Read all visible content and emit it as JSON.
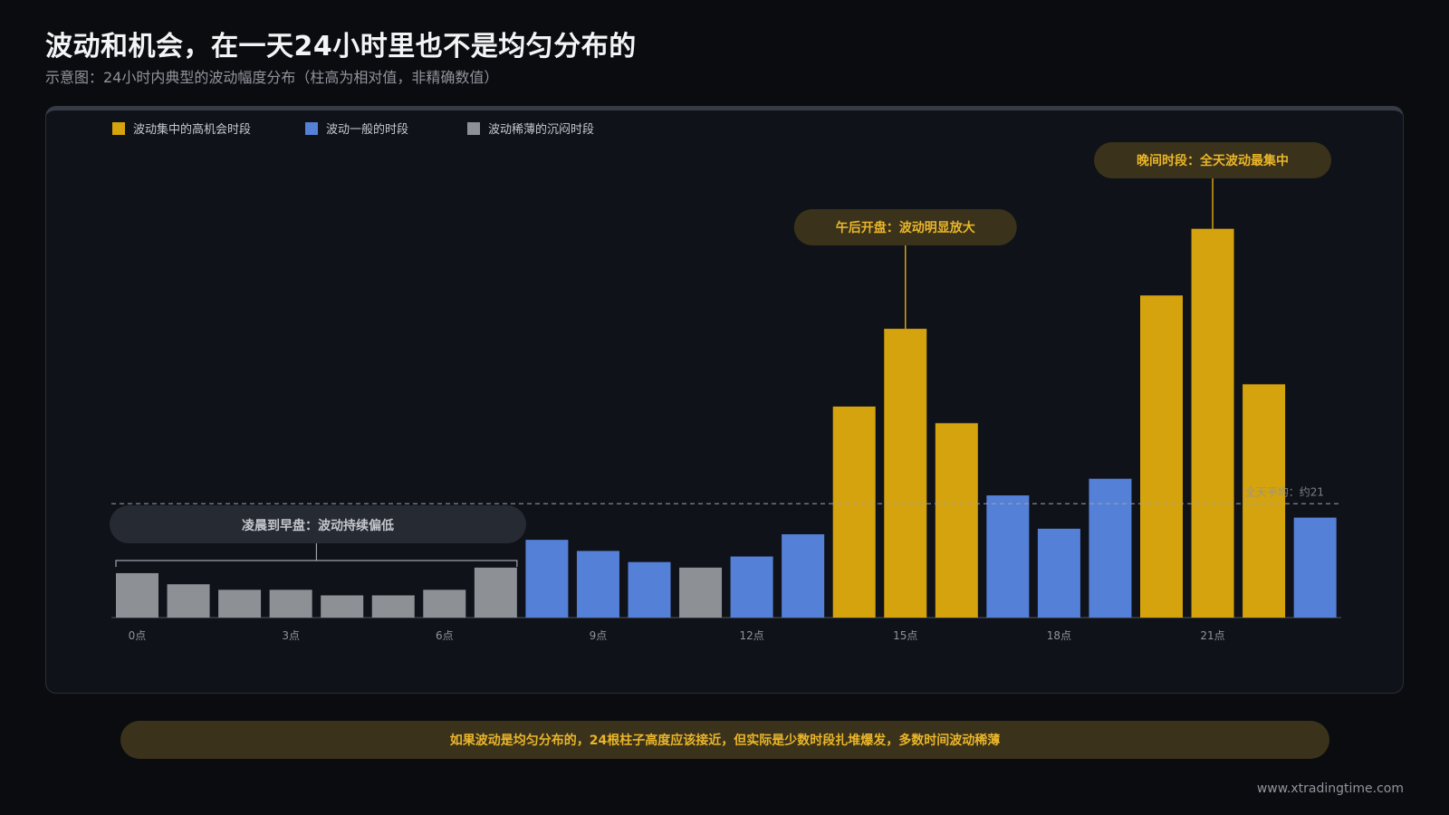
{
  "header": {
    "title": "波动和机会，在一天24小时里也不是均匀分布的",
    "subtitle": "示意图：24小时内典型的波动幅度分布（柱高为相对值，非精确数值）"
  },
  "colors": {
    "high": "#d4a30e",
    "normal": "#5580d8",
    "low": "#8d9094",
    "callout_gold_bg": "#3a321a",
    "callout_gold_text": "#e9b52a",
    "callout_gray_bg": "#262a32",
    "callout_gray_text": "#c4c7cc"
  },
  "chart_data": {
    "type": "bar",
    "legend": [
      {
        "key": "high",
        "label": "波动集中的高机会时段"
      },
      {
        "key": "normal",
        "label": "波动一般的时段"
      },
      {
        "key": "low",
        "label": "波动稀薄的沉闷时段"
      }
    ],
    "hours": [
      0,
      1,
      2,
      3,
      4,
      5,
      6,
      7,
      8,
      9,
      10,
      11,
      12,
      13,
      14,
      15,
      16,
      17,
      18,
      19,
      20,
      21,
      22,
      23
    ],
    "values": [
      8,
      6,
      5,
      5,
      4,
      4,
      5,
      9,
      14,
      12,
      10,
      9,
      11,
      15,
      38,
      52,
      35,
      22,
      16,
      25,
      58,
      70,
      42,
      18
    ],
    "categories_by_hour": [
      "low",
      "low",
      "low",
      "low",
      "low",
      "low",
      "low",
      "low",
      "normal",
      "normal",
      "normal",
      "low",
      "normal",
      "normal",
      "high",
      "high",
      "high",
      "normal",
      "normal",
      "normal",
      "high",
      "high",
      "high",
      "normal"
    ],
    "x_tick_labels": [
      {
        "hour": 0,
        "label": "0点"
      },
      {
        "hour": 3,
        "label": "3点"
      },
      {
        "hour": 6,
        "label": "6点"
      },
      {
        "hour": 9,
        "label": "9点"
      },
      {
        "hour": 12,
        "label": "12点"
      },
      {
        "hour": 15,
        "label": "15点"
      },
      {
        "hour": 18,
        "label": "18点"
      },
      {
        "hour": 21,
        "label": "21点"
      }
    ],
    "ylim": [
      0,
      75
    ],
    "average": {
      "value": 20.5,
      "label": "全天平均：约21"
    },
    "callouts": [
      {
        "text": "凌晨到早盘：波动持续偏低",
        "range": [
          0,
          7
        ],
        "style": "gray"
      },
      {
        "text": "午后开盘：波动明显放大",
        "hour": 15,
        "style": "gold"
      },
      {
        "text": "晚间时段：全天波动最集中",
        "hour": 21,
        "style": "gold"
      }
    ]
  },
  "footer": {
    "note": "如果波动是均匀分布的，24根柱子高度应该接近，但实际是少数时段扎堆爆发，多数时间波动稀薄",
    "url": "www.xtradingtime.com"
  }
}
